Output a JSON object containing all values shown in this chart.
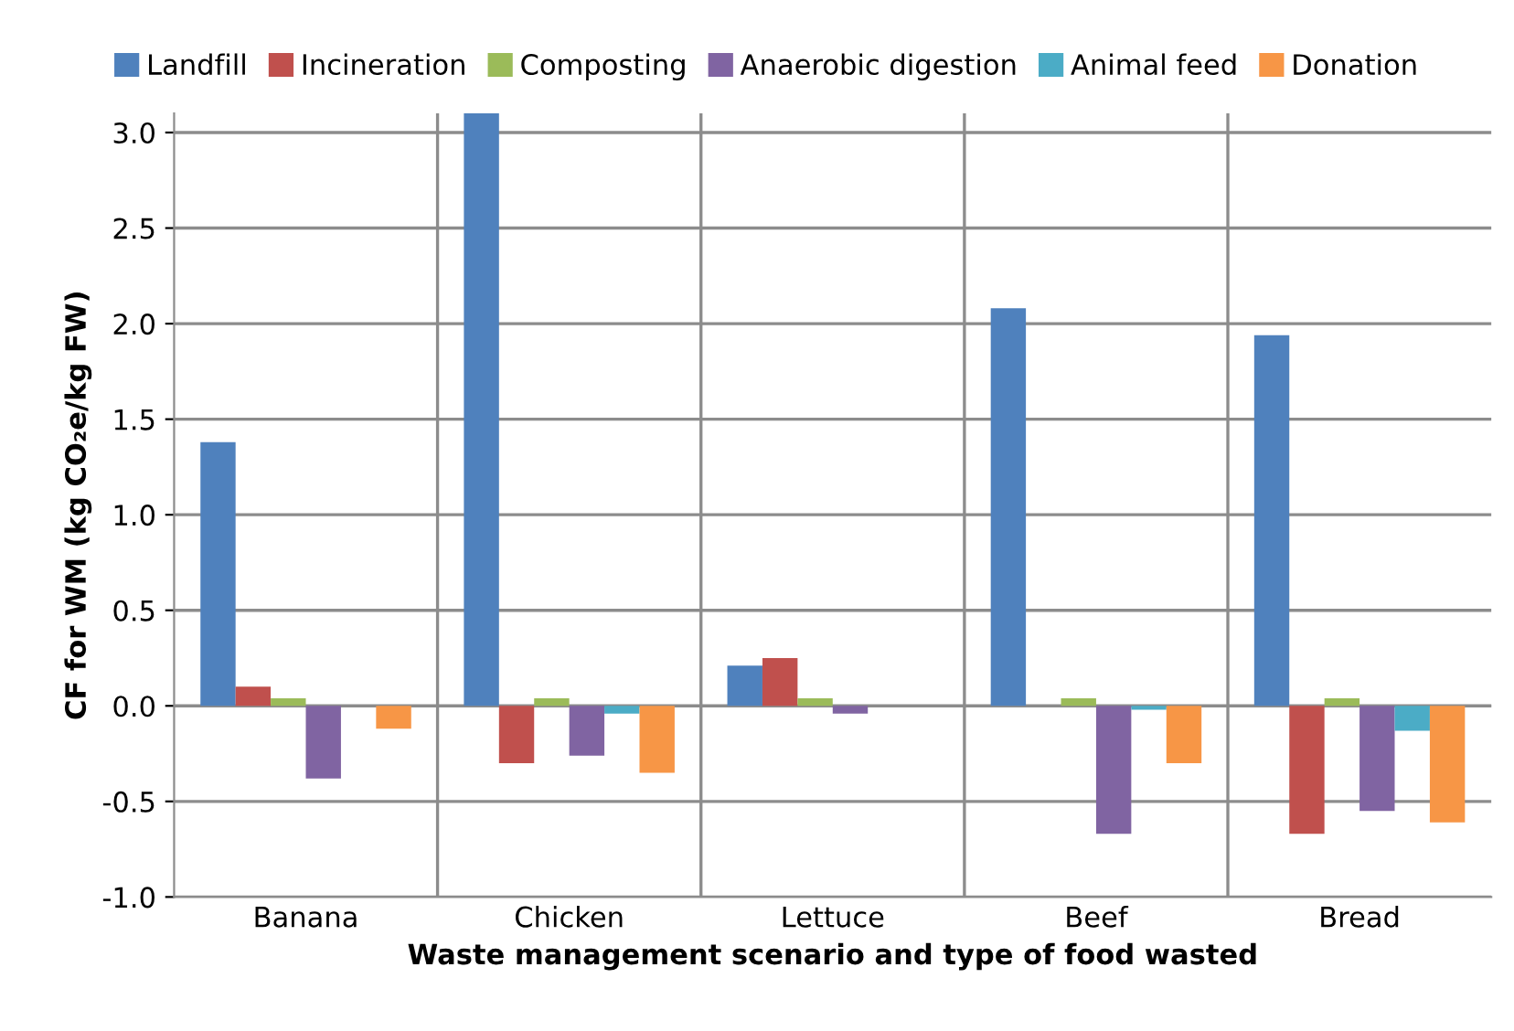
{
  "chart_data": {
    "type": "bar",
    "xlabel": "Waste management scenario and type of food wasted",
    "ylabel": "CF for WM (kg CO₂e/kg FW)",
    "categories": [
      "Banana",
      "Chicken",
      "Lettuce",
      "Beef",
      "Bread"
    ],
    "series": [
      {
        "name": "Landfill",
        "color": "#4f81bd",
        "values": [
          1.38,
          3.1,
          0.21,
          2.08,
          1.94
        ]
      },
      {
        "name": "Incineration",
        "color": "#c0504d",
        "values": [
          0.1,
          -0.3,
          0.25,
          0.0,
          -0.67
        ]
      },
      {
        "name": "Composting",
        "color": "#9bbb59",
        "values": [
          0.04,
          0.04,
          0.04,
          0.04,
          0.04
        ]
      },
      {
        "name": "Anaerobic digestion",
        "color": "#8064a2",
        "values": [
          -0.38,
          -0.26,
          -0.04,
          -0.67,
          -0.55
        ]
      },
      {
        "name": "Animal feed",
        "color": "#4bacc6",
        "values": [
          null,
          -0.04,
          0.0,
          -0.02,
          -0.13
        ]
      },
      {
        "name": "Donation",
        "color": "#f79646",
        "values": [
          -0.12,
          -0.35,
          null,
          -0.3,
          -0.61
        ]
      }
    ],
    "ylim": [
      -1.0,
      3.1
    ],
    "yticks": [
      {
        "value": -1.0,
        "label": "-1.0"
      },
      {
        "value": -0.5,
        "label": "-0.5"
      },
      {
        "value": 0.0,
        "label": "0.0"
      },
      {
        "value": 0.5,
        "label": "0.5"
      },
      {
        "value": 1.0,
        "label": "1.0"
      },
      {
        "value": 1.5,
        "label": "1.5"
      },
      {
        "value": 2.0,
        "label": "2.0"
      },
      {
        "value": 2.5,
        "label": "2.5"
      },
      {
        "value": 3.0,
        "label": "3.0"
      }
    ],
    "grid": true,
    "legend": "top"
  }
}
